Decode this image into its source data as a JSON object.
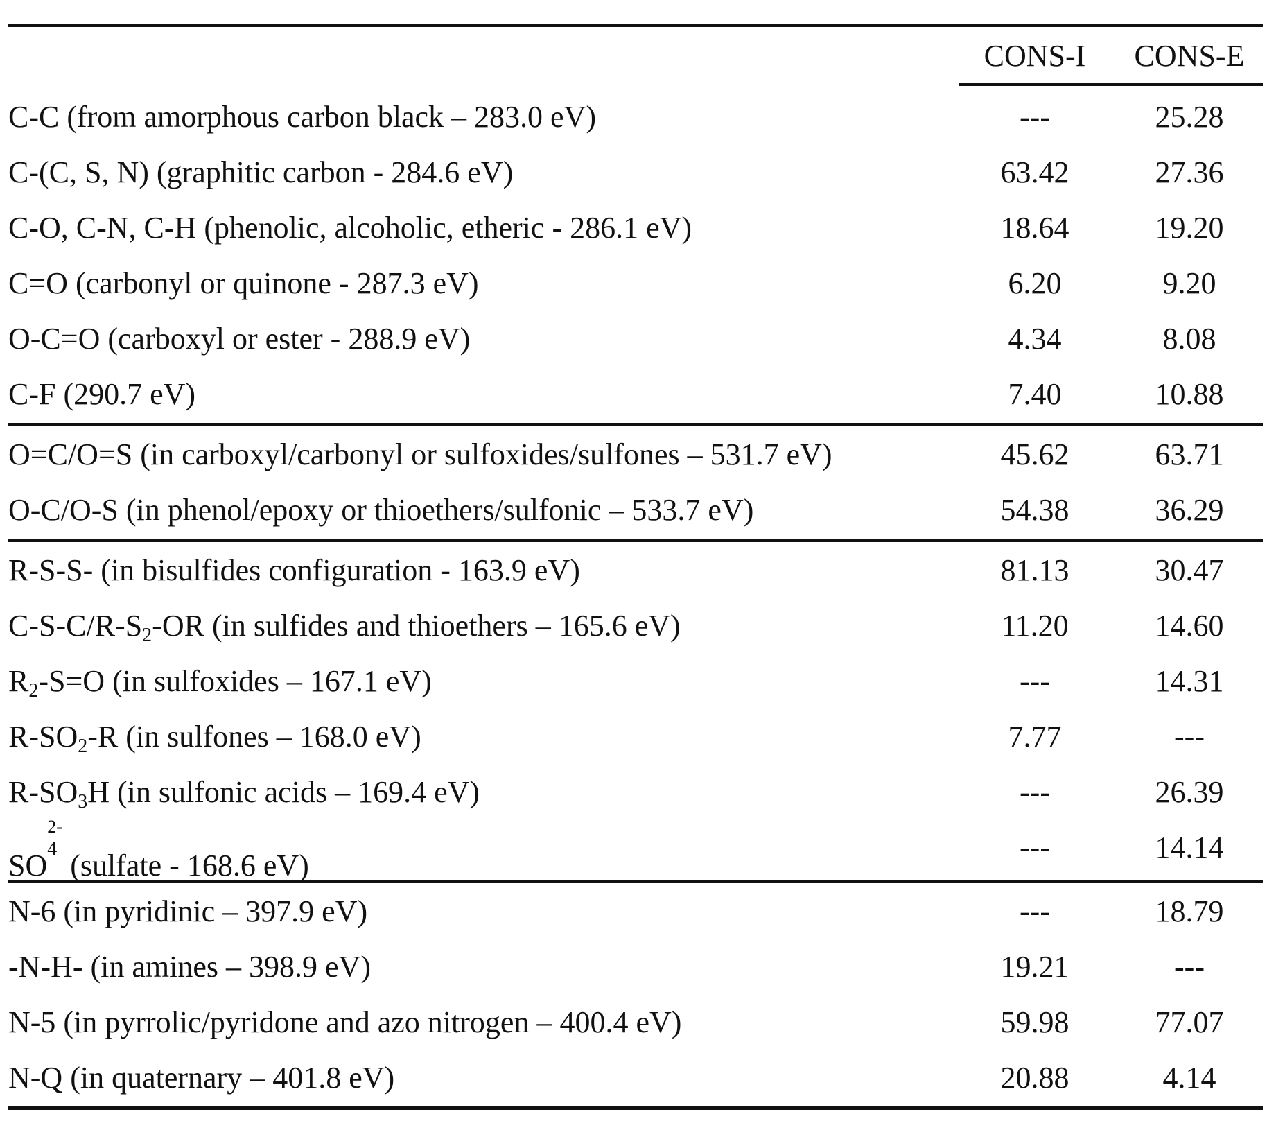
{
  "table": {
    "columns": [
      "CONS-I",
      "CONS-E"
    ],
    "groups": [
      {
        "rows": [
          {
            "label": "C-C (from amorphous carbon black – 283.0 eV)",
            "cons_i": "---",
            "cons_e": "25.28"
          },
          {
            "label": "C-(C, S, N) (graphitic carbon - 284.6 eV)",
            "cons_i": "63.42",
            "cons_e": "27.36"
          },
          {
            "label": "C-O, C-N, C-H (phenolic, alcoholic, etheric - 286.1 eV)",
            "cons_i": "18.64",
            "cons_e": "19.20"
          },
          {
            "label": "C=O (carbonyl or quinone - 287.3 eV)",
            "cons_i": "6.20",
            "cons_e": "9.20"
          },
          {
            "label": "O-C=O (carboxyl or ester - 288.9 eV)",
            "cons_i": "4.34",
            "cons_e": "8.08"
          },
          {
            "label": "C-F (290.7 eV)",
            "cons_i": "7.40",
            "cons_e": "10.88"
          }
        ]
      },
      {
        "rows": [
          {
            "label": "O=C/O=S (in carboxyl/carbonyl or sulfoxides/sulfones – 531.7 eV)",
            "cons_i": "45.62",
            "cons_e": "63.71"
          },
          {
            "label": "O-C/O-S (in phenol/epoxy or thioethers/sulfonic – 533.7 eV)",
            "cons_i": "54.38",
            "cons_e": "36.29"
          }
        ]
      },
      {
        "rows": [
          {
            "label": "R-S-S- (in bisulfides configuration - 163.9 eV)",
            "cons_i": "81.13",
            "cons_e": "30.47"
          },
          {
            "label_pre": "C-S-C/R-S",
            "label_sub": "2",
            "label_post": "-OR (in sulfides and thioethers – 165.6 eV)",
            "cons_i": "11.20",
            "cons_e": "14.60"
          },
          {
            "label_pre": "R",
            "label_sub": "2",
            "label_post": "-S=O (in sulfoxides – 167.1 eV)",
            "cons_i": "---",
            "cons_e": "14.31"
          },
          {
            "label_pre": "R-SO",
            "label_sub": "2",
            "label_post": "-R (in sulfones – 168.0 eV)",
            "cons_i": "7.77",
            "cons_e": "---"
          },
          {
            "label_pre": "R-SO",
            "label_sub": "3",
            "label_post": "H (in sulfonic acids – 169.4 eV)",
            "cons_i": "---",
            "cons_e": "26.39"
          },
          {
            "label_pre": "SO",
            "label_sub": "4",
            "label_sup": "2-",
            "label_post": " (sulfate  - 168.6 eV)",
            "cons_i": "---",
            "cons_e": "14.14"
          }
        ]
      },
      {
        "rows": [
          {
            "label": "N-6 (in pyridinic – 397.9 eV)",
            "cons_i": "---",
            "cons_e": "18.79"
          },
          {
            "label": "-N-H- (in amines – 398.9 eV)",
            "cons_i": "19.21",
            "cons_e": "---"
          },
          {
            "label": "N-5 (in pyrrolic/pyridone and azo nitrogen – 400.4 eV)",
            "cons_i": "59.98",
            "cons_e": "77.07"
          },
          {
            "label": "N-Q (in quaternary – 401.8 eV)",
            "cons_i": "20.88",
            "cons_e": "4.14"
          }
        ]
      }
    ]
  }
}
